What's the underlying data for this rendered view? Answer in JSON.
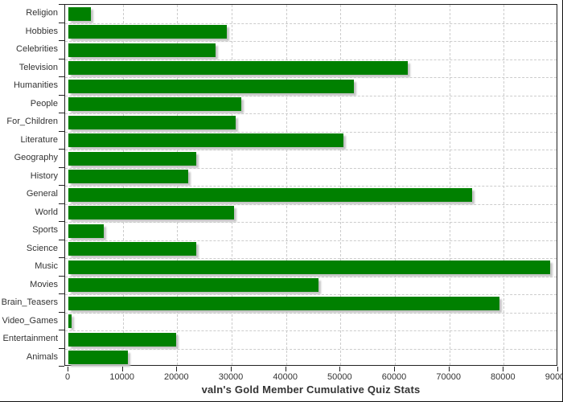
{
  "chart_data": {
    "type": "bar",
    "orientation": "horizontal",
    "title": "valn's Gold Member Cumulative Quiz Stats",
    "categories": [
      "Religion",
      "Hobbies",
      "Celebrities",
      "Television",
      "Humanities",
      "People",
      "For_Children",
      "Literature",
      "Geography",
      "History",
      "General",
      "World",
      "Sports",
      "Science",
      "Music",
      "Movies",
      "Brain_Teasers",
      "Video_Games",
      "Entertainment",
      "Animals"
    ],
    "values": [
      4200,
      29100,
      27100,
      62400,
      52400,
      31800,
      30700,
      50500,
      23500,
      22000,
      74200,
      30500,
      6500,
      23500,
      88500,
      46000,
      79200,
      600,
      19800,
      10900
    ],
    "xlim": [
      0,
      90000
    ],
    "x_ticks": [
      0,
      10000,
      20000,
      30000,
      40000,
      50000,
      60000,
      70000,
      80000,
      90000
    ],
    "xlabel": "",
    "ylabel": "",
    "grid": true,
    "grid_style": "dashed",
    "legend_position": "none",
    "bar_color": "#008000"
  },
  "style": {
    "bar_color": "#008000",
    "bar_shadow_color": "#c4c4c4",
    "grid_line_color": "#cccccc",
    "plot_border_color": "#222222",
    "axis_label_color": "#333333",
    "title_color": "#333333",
    "background_color": "#ffffff"
  }
}
